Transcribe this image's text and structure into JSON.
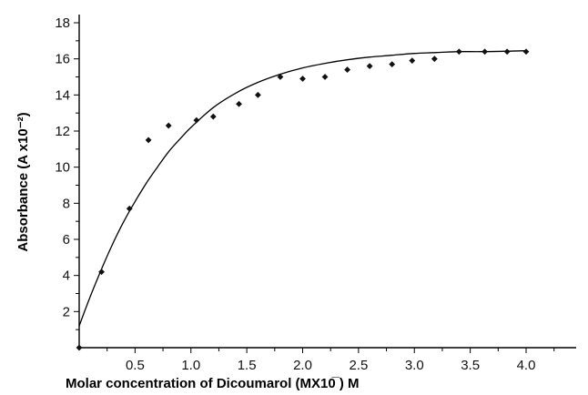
{
  "chart_data": {
    "type": "scatter",
    "title": "",
    "xlabel": "Molar concentration of Dicoumarol (MX10̅  ) M",
    "ylabel": "Absorbance (A x10⁻²)",
    "xlim": [
      0,
      4.5
    ],
    "ylim": [
      0,
      18
    ],
    "x_ticks": [
      0.5,
      1.0,
      1.5,
      2.0,
      2.5,
      3.0,
      3.5,
      4.0
    ],
    "x_tick_labels": [
      "0.5",
      "1.0",
      "1.5",
      "2.0",
      "2.5",
      "3.0",
      "3.5",
      "4.0"
    ],
    "y_ticks": [
      2,
      4,
      6,
      8,
      10,
      12,
      14,
      16,
      18
    ],
    "y_tick_labels": [
      "2",
      "4",
      "6",
      "8",
      "10",
      "12",
      "14",
      "16",
      "18"
    ],
    "grid": false,
    "legend": "none",
    "series": [
      {
        "kind": "points",
        "x": [
          0.0,
          0.2,
          0.45,
          0.62,
          0.8,
          1.05,
          1.2,
          1.43,
          1.6,
          1.8,
          2.0,
          2.2,
          2.4,
          2.6,
          2.8,
          2.98,
          3.18,
          3.4,
          3.63,
          3.83,
          4.0
        ],
        "y": [
          0.0,
          4.2,
          7.7,
          11.5,
          12.3,
          12.6,
          12.8,
          13.5,
          14.0,
          15.0,
          14.9,
          15.0,
          15.4,
          15.6,
          15.7,
          15.9,
          16.0,
          16.4,
          16.4,
          16.4,
          16.4
        ]
      },
      {
        "kind": "fit-curve",
        "x": [
          0.0,
          0.1,
          0.2,
          0.3,
          0.4,
          0.5,
          0.6,
          0.7,
          0.8,
          0.9,
          1.0,
          1.2,
          1.4,
          1.6,
          1.8,
          2.0,
          2.2,
          2.4,
          2.6,
          2.8,
          3.0,
          3.2,
          3.4,
          3.6,
          3.8,
          4.0
        ],
        "y": [
          1.2,
          2.85,
          4.35,
          5.75,
          7.0,
          8.1,
          9.1,
          10.0,
          10.85,
          11.55,
          12.2,
          13.3,
          14.1,
          14.7,
          15.15,
          15.5,
          15.75,
          15.95,
          16.1,
          16.2,
          16.3,
          16.35,
          16.4,
          16.4,
          16.42,
          16.45
        ]
      }
    ]
  },
  "style": {
    "axis_color": "#000000",
    "point_color": "#111111",
    "curve_color": "#000000"
  }
}
